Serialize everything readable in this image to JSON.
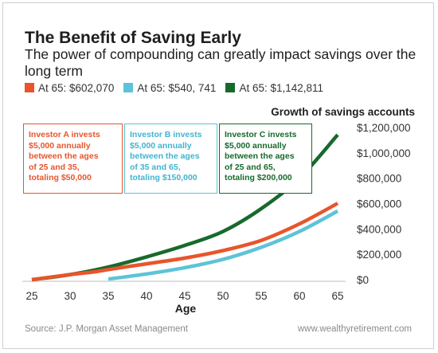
{
  "header": {
    "title": "The Benefit of Saving Early",
    "subtitle": "The power of compounding can greatly impact savings over the long term"
  },
  "legend": [
    {
      "label": "At 65: $602,070",
      "color": "#e8552b"
    },
    {
      "label": "At 65: $540, 741",
      "color": "#5dc3d8"
    },
    {
      "label": "At 65: $1,142,811",
      "color": "#176a2c"
    }
  ],
  "callouts": {
    "a": [
      "Investor A invests",
      "$5,000 annually",
      "between the ages",
      "of 25 and 35,",
      "totaling $50,000"
    ],
    "b": [
      "Investor B invests",
      "$5,000 annually",
      "between the ages",
      "of 35 and 65,",
      "totaling $150,000"
    ],
    "c": [
      "Investor C invests",
      "$5,000 annually",
      "between the ages",
      "of 25 and 65,",
      "totaling $200,000"
    ]
  },
  "footer": {
    "source": "Source: J.P. Morgan Asset Management",
    "website": "www.wealthyretirement.com"
  },
  "chart_data": {
    "type": "line",
    "title": "Growth of savings accounts",
    "xlabel": "Age",
    "ylabel": "",
    "xlim": [
      25,
      65
    ],
    "ylim": [
      0,
      1200000
    ],
    "x_ticks": [
      25,
      30,
      35,
      40,
      45,
      50,
      55,
      60,
      65
    ],
    "y_ticks": [
      0,
      200000,
      400000,
      600000,
      800000,
      1000000,
      1200000
    ],
    "y_tick_labels": [
      "$0",
      "$200,000",
      "$400,000",
      "$600,000",
      "$800,000",
      "$1,000,000",
      "$1,200,000"
    ],
    "grid": false,
    "legend_position": "top",
    "series": [
      {
        "name": "At 65: $602,070",
        "color": "#e8552b",
        "x": [
          25,
          30,
          33,
          35,
          40,
          45,
          50,
          55,
          60,
          65
        ],
        "y": [
          0,
          40000,
          60000,
          80000,
          125000,
          170000,
          230000,
          310000,
          440000,
          602070
        ]
      },
      {
        "name": "At 65: $540, 741",
        "color": "#5dc3d8",
        "x": [
          35,
          40,
          45,
          50,
          55,
          60,
          65
        ],
        "y": [
          5000,
          45000,
          95000,
          160000,
          255000,
          380000,
          540741
        ]
      },
      {
        "name": "At 65: $1,142,811",
        "color": "#176a2c",
        "x": [
          25,
          30,
          35,
          40,
          45,
          50,
          55,
          60,
          65
        ],
        "y": [
          0,
          40000,
          100000,
          180000,
          270000,
          380000,
          560000,
          800000,
          1142811
        ]
      }
    ]
  }
}
